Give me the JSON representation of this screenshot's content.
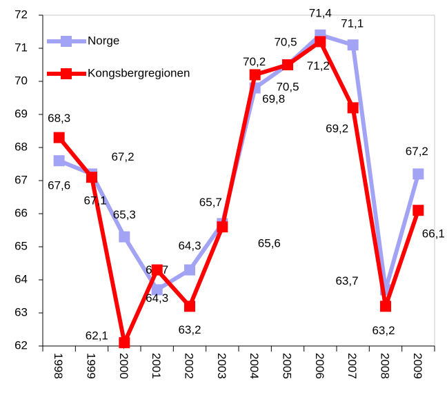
{
  "chart_data": {
    "type": "line",
    "categories": [
      "1998",
      "1999",
      "2000",
      "2001",
      "2002",
      "2003",
      "2004",
      "2005",
      "2006",
      "2007",
      "2008",
      "2009"
    ],
    "series": [
      {
        "name": "Norge",
        "color": "#a3a3f5",
        "label_color": "#5b8fd0",
        "values": [
          67.6,
          67.2,
          65.3,
          63.7,
          64.3,
          65.7,
          69.8,
          70.5,
          71.4,
          71.1,
          63.7,
          67.2
        ],
        "value_labels": [
          "67,6",
          "67,2",
          "65,3",
          "63,7",
          "64,3",
          "65,7",
          "69,8",
          "70,5",
          "71,4",
          "71,1",
          "63,7",
          "67,2"
        ]
      },
      {
        "name": "Kongsbergregionen",
        "color": "#ff0000",
        "label_color": "#c00000",
        "values": [
          68.3,
          67.1,
          62.1,
          64.3,
          63.2,
          65.6,
          70.2,
          70.5,
          71.2,
          69.2,
          63.2,
          66.1
        ],
        "value_labels": [
          "68,3",
          "67,1",
          "62,1",
          "64,3",
          "63,2",
          "65,6",
          "70,2",
          "70,5",
          "71,2",
          "69,2",
          "63,2",
          "66,1"
        ]
      }
    ],
    "ylim": [
      62,
      72
    ],
    "yticks": [
      62,
      63,
      64,
      65,
      66,
      67,
      68,
      69,
      70,
      71,
      72
    ],
    "legend": "top-left"
  }
}
